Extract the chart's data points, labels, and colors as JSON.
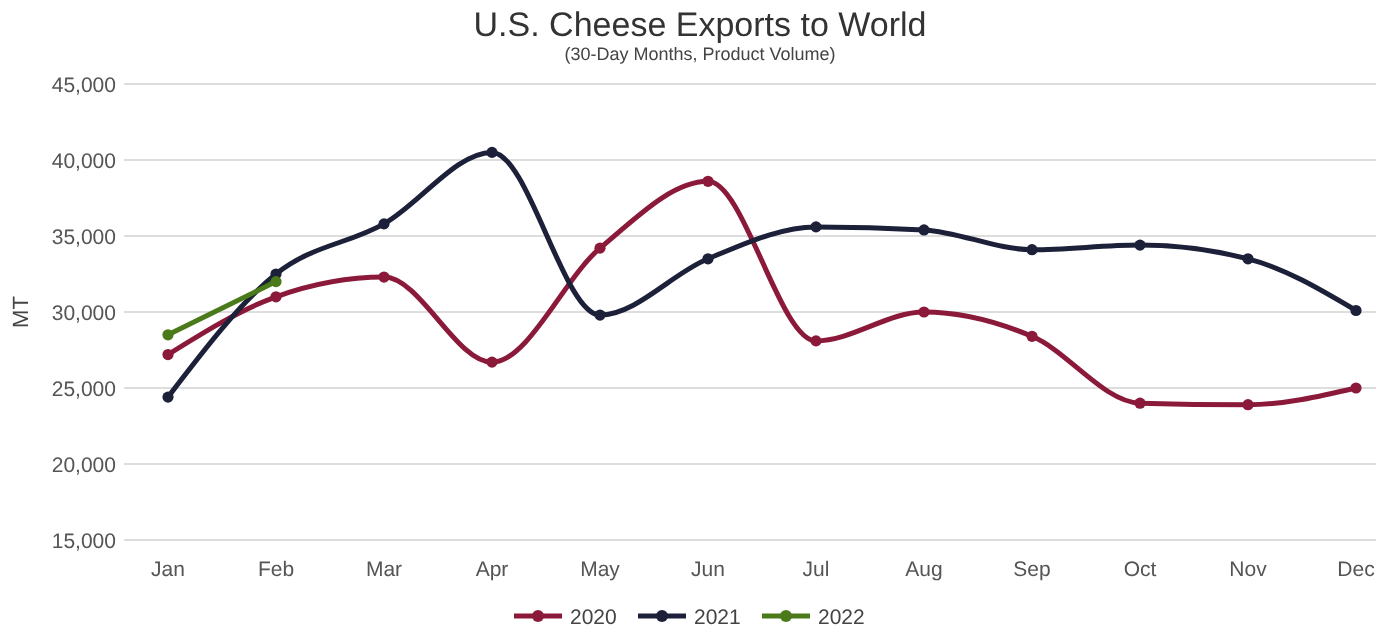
{
  "chart_data": {
    "type": "line",
    "title": "U.S. Cheese Exports to World",
    "subtitle": "(30-Day Months, Product Volume)",
    "ylabel": "MT",
    "categories": [
      "Jan",
      "Feb",
      "Mar",
      "Apr",
      "May",
      "Jun",
      "Jul",
      "Aug",
      "Sep",
      "Oct",
      "Nov",
      "Dec"
    ],
    "series": [
      {
        "name": "2020",
        "color": "#8b1a3a",
        "values": [
          27200,
          31000,
          32300,
          26700,
          34200,
          38600,
          28100,
          30000,
          28400,
          24000,
          23900,
          25000
        ]
      },
      {
        "name": "2021",
        "color": "#1c2038",
        "values": [
          24400,
          32500,
          35800,
          40500,
          29800,
          33500,
          35600,
          35400,
          34100,
          34400,
          33500,
          30100
        ]
      },
      {
        "name": "2022",
        "color": "#4a7a1a",
        "values": [
          28500,
          32000,
          null,
          null,
          null,
          null,
          null,
          null,
          null,
          null,
          null,
          null
        ]
      }
    ],
    "ylim": [
      15000,
      45000
    ],
    "yticks": [
      {
        "value": 15000,
        "label": "15,000"
      },
      {
        "value": 20000,
        "label": "20,000"
      },
      {
        "value": 25000,
        "label": "25,000"
      },
      {
        "value": 30000,
        "label": "30,000"
      },
      {
        "value": 35000,
        "label": "35,000"
      },
      {
        "value": 40000,
        "label": "40,000"
      },
      {
        "value": 45000,
        "label": "45,000"
      }
    ],
    "grid": "y",
    "legend": "bottom",
    "marker": "circle",
    "line_style": "solid"
  }
}
